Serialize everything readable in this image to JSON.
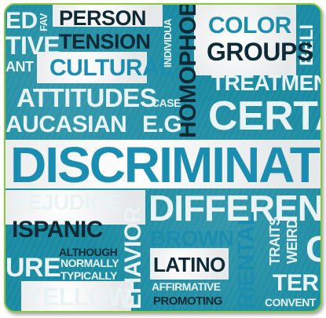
{
  "words": {
    "ed": "ED",
    "fav": "FAV",
    "person": "PERSON",
    "individual": "INDIVIDUA",
    "homophob": "HOMOPHOB",
    "color": "COLOR",
    "beli": "BELI",
    "tive": "TIVE",
    "tension": "TENSION",
    "groups": "GROUPS",
    "ant": "ANT",
    "cultural": "CULTURAL",
    "treatmen": "TREATMEN",
    "attitudes": "ATTITUDES",
    "case": "CASE",
    "certa": "CERTA",
    "aucasian": "AUCASIAN",
    "eg": "E.G",
    "discriminat": "DISCRIMINAT",
    "rejudice": "REJUDICE",
    "different": "DIFFERENT",
    "ispanic": "ISPANIC",
    "brown": "BROWN",
    "although": "ALTHOUGH",
    "normally": "NORMALLY",
    "typically": "TYPICALLY",
    "ure": "URE",
    "behavior": "EHAVIOR",
    "latino": "LATINO",
    "traits": "TRAITS",
    "weird": "WEIRD",
    "g": "G",
    "ter": "TER",
    "yellow": "YELLOW",
    "affirmative": "AFFIRMATIVE",
    "promoting": "PROMOTING",
    "riental": "RIENTAL",
    "convent": "CONVENT"
  },
  "colors": {
    "frame_border": "#8dc63f",
    "teal": "#1e8fa6",
    "dark_text": "#0e2a36",
    "light_text": "#e9f3f5",
    "band": "#f3f3f3"
  }
}
